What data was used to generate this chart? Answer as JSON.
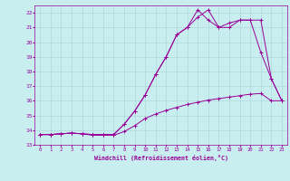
{
  "xlabel": "Windchill (Refroidissement éolien,°C)",
  "bg_color": "#c8eef0",
  "grid_color": "#aad4d8",
  "line_color": "#990099",
  "xlim": [
    -0.5,
    23.5
  ],
  "ylim": [
    13.0,
    22.5
  ],
  "xticks": [
    0,
    1,
    2,
    3,
    4,
    5,
    6,
    7,
    8,
    9,
    10,
    11,
    12,
    13,
    14,
    15,
    16,
    17,
    18,
    19,
    20,
    21,
    22,
    23
  ],
  "yticks": [
    13,
    14,
    15,
    16,
    17,
    18,
    19,
    20,
    21,
    22
  ],
  "line1_x": [
    0,
    1,
    2,
    3,
    4,
    5,
    6,
    7,
    8,
    9,
    10,
    11,
    12,
    13,
    14,
    15,
    16,
    17,
    18,
    19,
    20,
    21,
    22,
    23
  ],
  "line1_y": [
    13.7,
    13.7,
    13.75,
    13.8,
    13.75,
    13.7,
    13.7,
    13.7,
    14.4,
    15.3,
    16.4,
    17.8,
    19.0,
    20.5,
    21.0,
    21.7,
    22.2,
    21.0,
    21.0,
    21.5,
    21.5,
    19.3,
    17.5,
    16.0
  ],
  "line2_x": [
    0,
    1,
    2,
    3,
    4,
    5,
    6,
    7,
    8,
    9,
    10,
    11,
    12,
    13,
    14,
    15,
    16,
    17,
    18,
    19,
    20,
    21,
    22,
    23
  ],
  "line2_y": [
    13.7,
    13.7,
    13.75,
    13.8,
    13.75,
    13.7,
    13.7,
    13.7,
    14.4,
    15.3,
    16.4,
    17.8,
    19.0,
    20.5,
    21.0,
    22.2,
    21.5,
    21.0,
    21.3,
    21.5,
    21.5,
    21.5,
    17.5,
    16.0
  ],
  "line3_x": [
    0,
    1,
    2,
    3,
    4,
    5,
    6,
    7,
    8,
    9,
    10,
    11,
    12,
    13,
    14,
    15,
    16,
    17,
    18,
    19,
    20,
    21,
    22,
    23
  ],
  "line3_y": [
    13.7,
    13.7,
    13.75,
    13.8,
    13.75,
    13.65,
    13.65,
    13.65,
    13.9,
    14.3,
    14.8,
    15.1,
    15.35,
    15.55,
    15.75,
    15.9,
    16.05,
    16.15,
    16.25,
    16.35,
    16.45,
    16.5,
    16.0,
    16.0
  ]
}
